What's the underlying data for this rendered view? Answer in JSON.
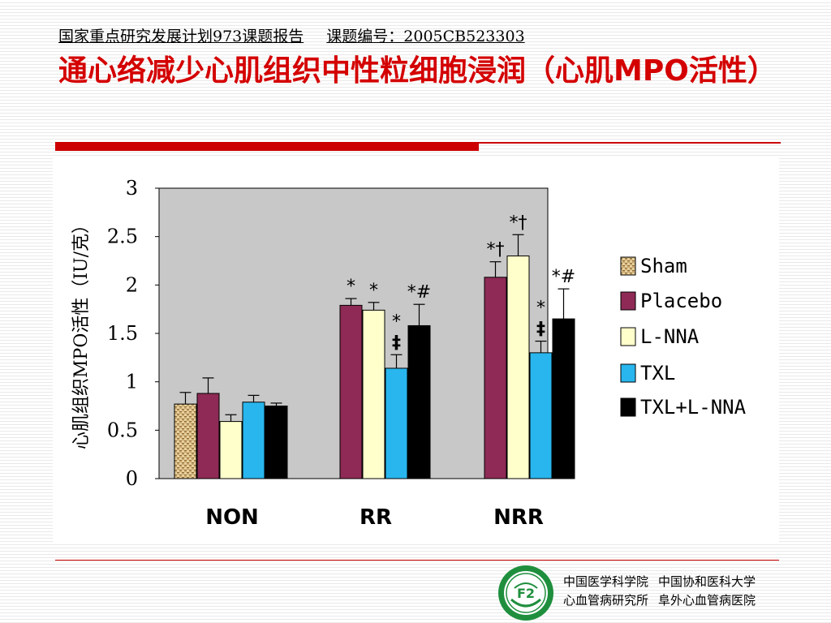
{
  "header": {
    "report": "国家重点研究发展计划973课题报告",
    "project_no": "课题编号：2005CB523303"
  },
  "title": "通心络减少心肌组织中性粒细胞浸润（心肌MPO活性）",
  "chart_data": {
    "type": "bar",
    "ylabel": "心肌组织MPO活性（IU/克）",
    "ylim": [
      0,
      3
    ],
    "yticks": [
      "0",
      "0.5",
      "1",
      "1.5",
      "2",
      "2.5",
      "3"
    ],
    "categories": [
      "NON",
      "RR",
      "NRR"
    ],
    "series": [
      {
        "name": "Sham",
        "values": [
          0.77,
          null,
          null
        ],
        "errors": [
          0.12,
          null,
          null
        ],
        "marks": [
          "",
          "",
          ""
        ]
      },
      {
        "name": "Placebo",
        "values": [
          0.88,
          1.79,
          2.08
        ],
        "errors": [
          0.16,
          0.07,
          0.16
        ],
        "marks": [
          "",
          "*",
          "*†"
        ]
      },
      {
        "name": "L-NNA",
        "values": [
          0.59,
          1.74,
          2.3
        ],
        "errors": [
          0.07,
          0.08,
          0.22
        ],
        "marks": [
          "",
          "*",
          "*†"
        ]
      },
      {
        "name": "TXL",
        "values": [
          0.79,
          1.14,
          1.3
        ],
        "errors": [
          0.07,
          0.14,
          0.12
        ],
        "marks": [
          "",
          "*‡",
          "*‡"
        ]
      },
      {
        "name": "TXL+L-NNA",
        "values": [
          0.75,
          1.58,
          1.65
        ],
        "errors": [
          0.03,
          0.22,
          0.31
        ],
        "marks": [
          "",
          "*#",
          "*#"
        ]
      }
    ],
    "colors": [
      "#c9a86b",
      "#8e2a55",
      "#ffffcc",
      "#29b6ee",
      "#000000"
    ],
    "legend_position": "right",
    "grid": false
  },
  "footer": {
    "inst1": "中国医学科学院",
    "inst2": "中国协和医科大学",
    "inst3": "心血管病研究所",
    "inst4": "阜外心血管病医院"
  },
  "logo": {
    "icon": "hospital-emblem-icon",
    "text": "F2"
  }
}
